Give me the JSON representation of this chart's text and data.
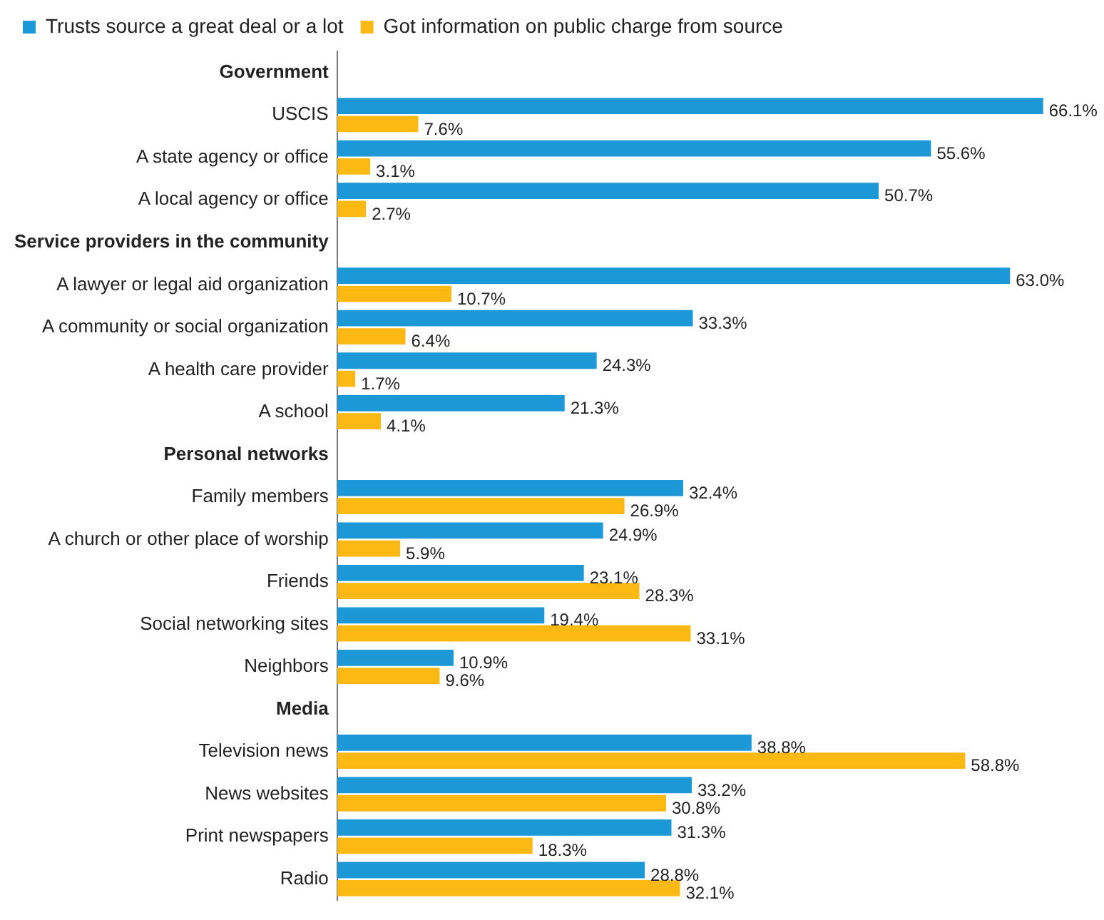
{
  "chart_data": {
    "type": "bar",
    "orientation": "horizontal",
    "legend": "top left",
    "categories": [
      "Government",
      "USCIS",
      "A state agency or office",
      "A local agency or office",
      "Service providers in the community",
      "A lawyer or legal aid organization",
      "A community or social organization",
      "A health care provider",
      "A school",
      "Personal networks",
      "Family members",
      "A church or other place of worship",
      "Friends",
      "Social networking sites",
      "Neighbors",
      "Media",
      "Television news",
      "News websites",
      "Print newspapers",
      "Radio"
    ],
    "series": [
      {
        "name": "Trusts source a great deal or a lot",
        "color": "#1b98d5",
        "values": [
          null,
          66.1,
          55.6,
          50.7,
          null,
          63.0,
          33.3,
          24.3,
          21.3,
          null,
          32.4,
          24.9,
          23.1,
          19.4,
          10.9,
          null,
          38.8,
          33.2,
          31.3,
          28.8
        ],
        "value_labels": [
          null,
          "66.1%",
          "55.6%",
          "50.7%",
          null,
          "63.0%",
          "33.3%",
          "24.3%",
          "21.3%",
          null,
          "32.4%",
          "24.9%",
          "23.1%",
          "19.4%",
          "10.9%",
          null,
          "38.8%",
          "33.2%",
          "31.3%",
          "28.8%"
        ]
      },
      {
        "name": "Got information on public charge from source",
        "color": "#fcb813",
        "values": [
          null,
          7.6,
          3.1,
          2.7,
          null,
          10.7,
          6.4,
          1.7,
          4.1,
          null,
          26.9,
          5.9,
          28.3,
          33.1,
          9.6,
          null,
          58.8,
          30.8,
          18.3,
          32.1
        ],
        "value_labels": [
          null,
          "7.6%",
          "3.1%",
          "2.7%",
          null,
          "10.7%",
          "6.4%",
          "1.7%",
          "4.1%",
          null,
          "26.9%",
          "5.9%",
          "28.3%",
          "33.1%",
          "9.6%",
          null,
          "58.8%",
          "30.8%",
          "18.3%",
          "32.1%"
        ]
      }
    ]
  }
}
